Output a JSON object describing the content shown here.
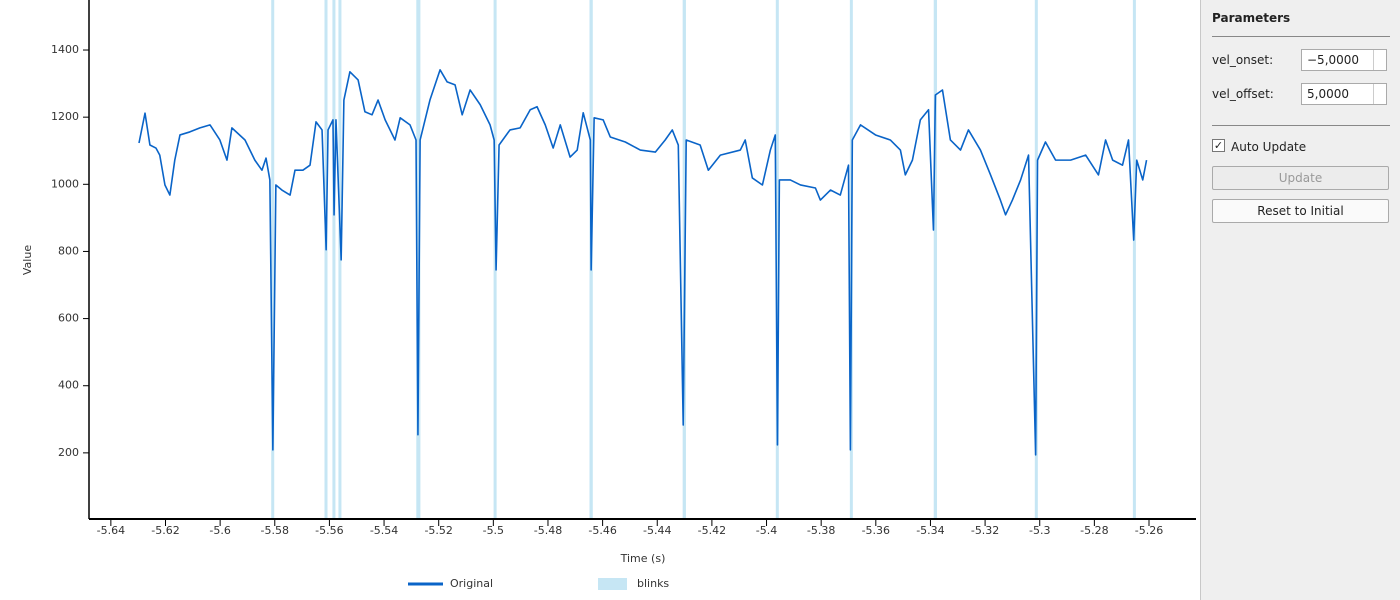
{
  "chart_data": {
    "type": "line",
    "xlabel": "Time (s)",
    "ylabel": "Value",
    "xlim": [
      -5.648,
      -5.2428
    ],
    "ylim": [
      3,
      1549
    ],
    "xticks": [
      -5.64,
      -5.62,
      -5.6,
      -5.58,
      -5.56,
      -5.54,
      -5.52,
      -5.5,
      -5.48,
      -5.46,
      -5.44,
      -5.42,
      -5.4,
      -5.38,
      -5.36,
      -5.34,
      -5.32,
      -5.3,
      -5.28,
      -5.26
    ],
    "yticks": [
      200,
      400,
      600,
      800,
      1000,
      1200,
      1400
    ],
    "x": [
      -5.6297,
      -5.6275,
      -5.6257,
      -5.6235,
      -5.6221,
      -5.6202,
      -5.6184,
      -5.6166,
      -5.6147,
      -5.6111,
      -5.6074,
      -5.6037,
      -5.6001,
      -5.5975,
      -5.5957,
      -5.5909,
      -5.5873,
      -5.5847,
      -5.5832,
      -5.5818,
      -5.5807,
      -5.5796,
      -5.5774,
      -5.5744,
      -5.5726,
      -5.5697,
      -5.5671,
      -5.5649,
      -5.5627,
      -5.5612,
      -5.5605,
      -5.5587,
      -5.5583,
      -5.5576,
      -5.5557,
      -5.5547,
      -5.5525,
      -5.5495,
      -5.547,
      -5.5444,
      -5.5422,
      -5.5396,
      -5.536,
      -5.5341,
      -5.5305,
      -5.5283,
      -5.5276,
      -5.5268,
      -5.5232,
      -5.5195,
      -5.5169,
      -5.514,
      -5.5114,
      -5.5085,
      -5.5048,
      -5.5012,
      -5.4997,
      -5.499,
      -5.4979,
      -5.4939,
      -5.4902,
      -5.4865,
      -5.484,
      -5.481,
      -5.4781,
      -5.4755,
      -5.4719,
      -5.4693,
      -5.4671,
      -5.4645,
      -5.4642,
      -5.4631,
      -5.4598,
      -5.4572,
      -5.4517,
      -5.4462,
      -5.4407,
      -5.4371,
      -5.4345,
      -5.4323,
      -5.4305,
      -5.4294,
      -5.4243,
      -5.4213,
      -5.4169,
      -5.4096,
      -5.4078,
      -5.4052,
      -5.4015,
      -5.3986,
      -5.3968,
      -5.396,
      -5.3953,
      -5.3913,
      -5.3876,
      -5.3821,
      -5.3803,
      -5.3766,
      -5.373,
      -5.37,
      -5.3693,
      -5.3686,
      -5.3656,
      -5.3601,
      -5.3547,
      -5.351,
      -5.3492,
      -5.3466,
      -5.3437,
      -5.3407,
      -5.3389,
      -5.3382,
      -5.3356,
      -5.3327,
      -5.329,
      -5.3261,
      -5.3217,
      -5.318,
      -5.3144,
      -5.3125,
      -5.31,
      -5.307,
      -5.3041,
      -5.3015,
      -5.3008,
      -5.2979,
      -5.2942,
      -5.2887,
      -5.2832,
      -5.2785,
      -5.2759,
      -5.2733,
      -5.2697,
      -5.2675,
      -5.2656,
      -5.2645,
      -5.2623,
      -5.2609
    ],
    "series": [
      {
        "name": "Original",
        "color": "#0a64c8",
        "values": [
          1123,
          1212,
          1117,
          1108,
          1087,
          998,
          968,
          1072,
          1147,
          1156,
          1168,
          1177,
          1132,
          1072,
          1168,
          1132,
          1072,
          1042,
          1078,
          1013,
          209,
          998,
          983,
          968,
          1042,
          1042,
          1057,
          1186,
          1162,
          805,
          1162,
          1192,
          909,
          1192,
          775,
          1251,
          1335,
          1311,
          1216,
          1207,
          1251,
          1192,
          1132,
          1198,
          1177,
          1132,
          254,
          1132,
          1251,
          1341,
          1305,
          1296,
          1207,
          1281,
          1237,
          1177,
          1132,
          745,
          1117,
          1162,
          1168,
          1222,
          1231,
          1177,
          1108,
          1177,
          1081,
          1102,
          1213,
          1132,
          745,
          1198,
          1192,
          1141,
          1126,
          1102,
          1096,
          1132,
          1162,
          1117,
          283,
          1132,
          1117,
          1042,
          1087,
          1102,
          1132,
          1019,
          998,
          1102,
          1147,
          224,
          1013,
          1013,
          998,
          989,
          953,
          983,
          968,
          1057,
          209,
          1132,
          1177,
          1147,
          1132,
          1102,
          1028,
          1072,
          1192,
          1222,
          864,
          1266,
          1281,
          1132,
          1102,
          1162,
          1102,
          1028,
          953,
          909,
          953,
          1013,
          1087,
          194,
          1072,
          1126,
          1072,
          1072,
          1087,
          1028,
          1132,
          1072,
          1057,
          1132,
          834,
          1072,
          1013,
          1072
        ]
      }
    ],
    "blinks": {
      "name": "blinks",
      "color": "#c6e6f4",
      "spans": [
        [
          -5.5813,
          -5.5802
        ],
        [
          -5.5618,
          -5.5607
        ],
        [
          -5.5589,
          -5.5578
        ],
        [
          -5.5567,
          -5.5556
        ],
        [
          -5.5282,
          -5.5267
        ],
        [
          -5.4999,
          -5.4988
        ],
        [
          -5.4648,
          -5.4636
        ],
        [
          -5.4307,
          -5.4295
        ],
        [
          -5.3966,
          -5.3955
        ],
        [
          -5.3695,
          -5.3684
        ],
        [
          -5.3388,
          -5.3376
        ],
        [
          -5.3018,
          -5.3007
        ],
        [
          -5.2659,
          -5.2648
        ]
      ]
    }
  },
  "panel": {
    "title": "Parameters",
    "fields": [
      {
        "label": "vel_onset:",
        "value": "−5,0000"
      },
      {
        "label": "vel_offset:",
        "value": "5,0000"
      }
    ],
    "checkbox": "Auto Update",
    "buttons": [
      "Update",
      "Reset to Initial"
    ]
  }
}
